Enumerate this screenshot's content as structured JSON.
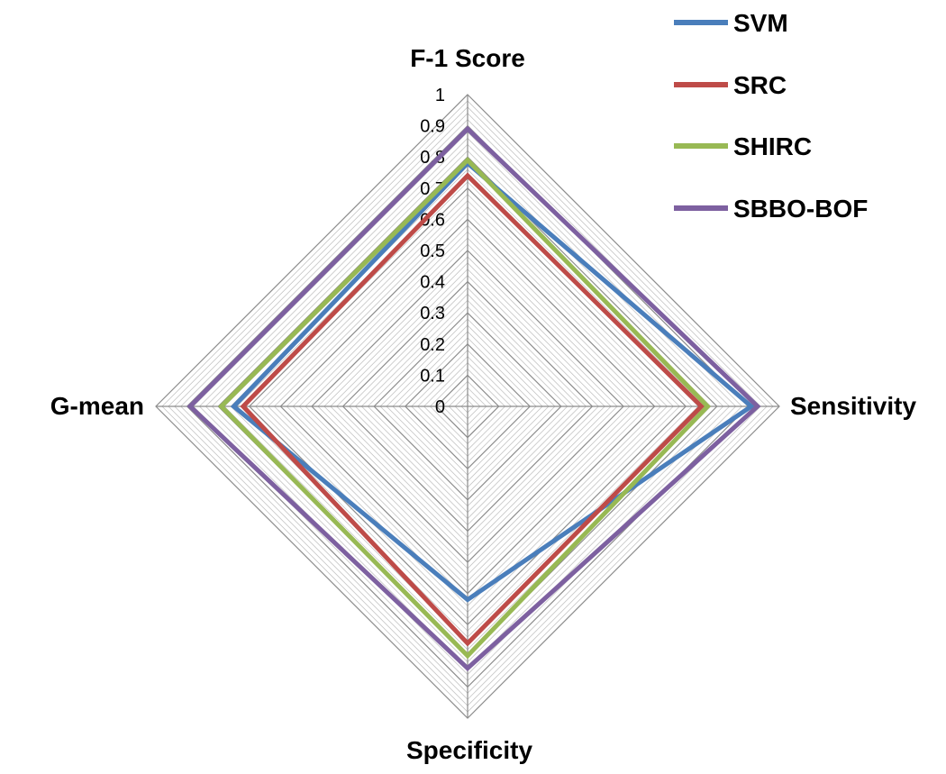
{
  "chart_data": {
    "type": "radar",
    "axes": [
      "F-1 Score",
      "Sensitivity",
      "Specificity",
      "G-mean"
    ],
    "rlim": [
      0,
      1
    ],
    "ticks": [
      "0",
      "0.1",
      "0.2",
      "0.3",
      "0.4",
      "0.5",
      "0.6",
      "0.7",
      "0.8",
      "0.9",
      "1"
    ],
    "grid": true,
    "legend_position": "top-right",
    "series": [
      {
        "name": "SVM",
        "color": "#4a7ebb",
        "values": [
          0.78,
          0.91,
          0.62,
          0.75
        ]
      },
      {
        "name": "SRC",
        "color": "#be4b48",
        "values": [
          0.74,
          0.75,
          0.76,
          0.72
        ]
      },
      {
        "name": "SHIRC",
        "color": "#98b954",
        "values": [
          0.79,
          0.77,
          0.8,
          0.79
        ]
      },
      {
        "name": "SBBO-BOF",
        "color": "#7d60a0",
        "values": [
          0.89,
          0.93,
          0.84,
          0.89
        ]
      }
    ]
  }
}
